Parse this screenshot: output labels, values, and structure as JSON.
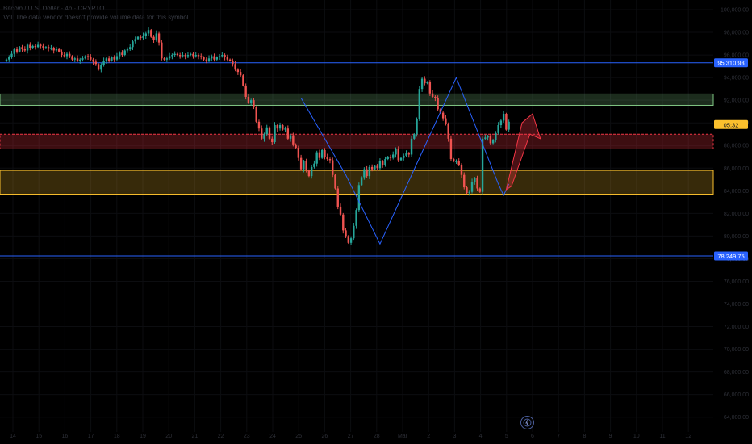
{
  "header": {
    "title": "Bitcoin / U.S. Dollar · 4h · CRYPTO",
    "warning": "Vol: The data vendor doesn't provide volume data for this symbol."
  },
  "price_labels": {
    "upper_line": "95,310.93",
    "lower_line": "78,249.75",
    "countdown": "05:32"
  },
  "colors": {
    "bull": "#26a69a",
    "bear": "#ef5350",
    "hline": "#2962ff",
    "zigzag": "#2962ff",
    "green_zone": "#81c784",
    "red_zone": "#f23645",
    "yellow_zone": "#fbc02d"
  },
  "chart_data": {
    "type": "candlestick",
    "interval": "4h",
    "ylim": [
      64000,
      100000
    ],
    "y_ticks": [
      "100,000.00",
      "98,000.00",
      "96,000.00",
      "94,000.00",
      "92,000.00",
      "90,000.00",
      "88,000.00",
      "86,000.00",
      "84,000.00",
      "82,000.00",
      "80,000.00",
      "78,000.00",
      "76,000.00",
      "74,000.00",
      "72,000.00",
      "70,000.00",
      "68,000.00",
      "66,000.00",
      "64,000.00"
    ],
    "x_ticks": [
      "14",
      "15",
      "16",
      "17",
      "18",
      "19",
      "20",
      "21",
      "22",
      "23",
      "24",
      "25",
      "26",
      "27",
      "28",
      "Mar",
      "2",
      "3",
      "4",
      "5",
      "6",
      "7",
      "8",
      "9",
      "10",
      "11",
      "12"
    ],
    "close": [
      95600,
      95800,
      96100,
      96500,
      96300,
      96700,
      96500,
      96400,
      96900,
      96600,
      96800,
      96700,
      96900,
      96800,
      96600,
      96700,
      96550,
      96600,
      96400,
      96500,
      96300,
      96000,
      95900,
      96100,
      95900,
      95600,
      95700,
      95500,
      95600,
      95700,
      95900,
      95800,
      95600,
      95400,
      95200,
      94700,
      95100,
      95500,
      95700,
      95500,
      95800,
      95600,
      95900,
      96200,
      96000,
      96400,
      96500,
      96700,
      97200,
      97400,
      97600,
      97500,
      97700,
      97900,
      98200,
      97600,
      97300,
      97900,
      97100,
      95700,
      95600,
      95700,
      95900,
      96000,
      96100,
      96000,
      95900,
      96000,
      95900,
      96000,
      96100,
      95900,
      96000,
      95900,
      95800,
      95600,
      95500,
      95700,
      95900,
      95600,
      95800,
      95900,
      96000,
      95800,
      95600,
      95500,
      95200,
      94700,
      94500,
      94200,
      93300,
      92300,
      91800,
      92000,
      91400,
      90100,
      89500,
      88600,
      89000,
      89600,
      88600,
      88300,
      89800,
      89500,
      89800,
      89400,
      89500,
      88600,
      88900,
      88100,
      87800,
      86900,
      85900,
      86600,
      85800,
      85300,
      86100,
      86400,
      87400,
      86900,
      87600,
      87000,
      86800,
      86700,
      85400,
      84200,
      82600,
      81900,
      80500,
      80000,
      79400,
      79800,
      80900,
      82300,
      84500,
      85200,
      85900,
      85300,
      86100,
      85900,
      86200,
      86000,
      86600,
      86300,
      86800,
      87000,
      86900,
      87200,
      87700,
      86700,
      86900,
      87100,
      87300,
      87200,
      88600,
      89000,
      90300,
      93000,
      93900,
      93500,
      93600,
      92600,
      92300,
      92200,
      91200,
      90900,
      90400,
      89900,
      88600,
      86800,
      86600,
      86600,
      86300,
      85400,
      84300,
      83800,
      83900,
      84800,
      85100,
      84200,
      83900,
      88600,
      88700,
      88800,
      88200,
      88500,
      89100,
      89800,
      90200,
      90800,
      89400,
      90100
    ]
  }
}
